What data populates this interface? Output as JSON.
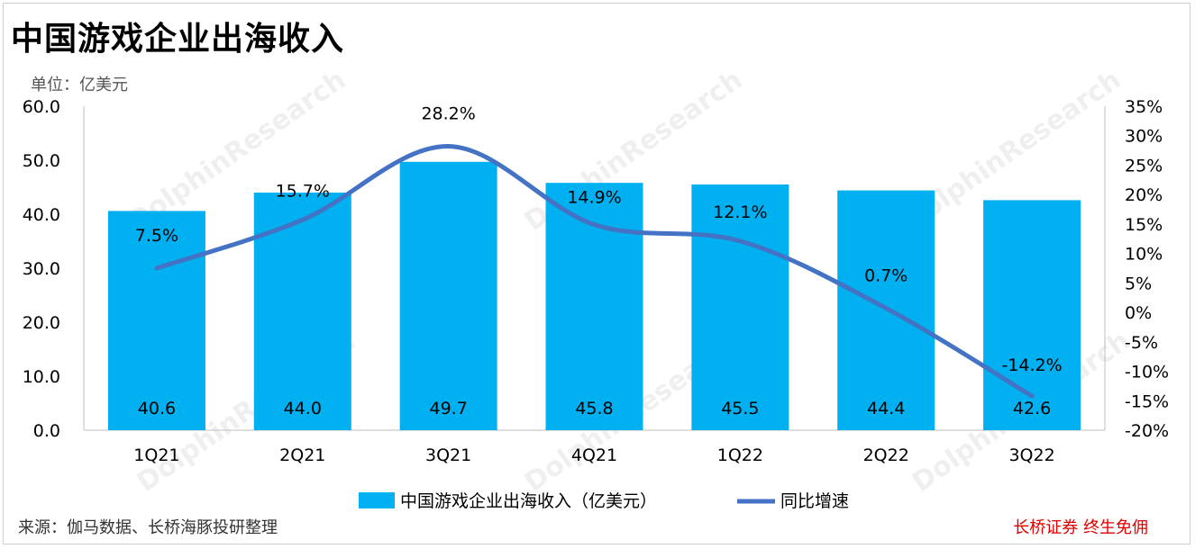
{
  "title": "中国游戏企业出海收入",
  "unit_label": "单位：亿美元",
  "source": "来源：伽马数据、长桥海豚投研整理",
  "brand": "长桥证券 终生免佣",
  "watermark": "DolphinResearch",
  "colors": {
    "bar": "#00B0F0",
    "line": "#4472C4"
  },
  "chart_data": {
    "type": "bar",
    "categories": [
      "1Q21",
      "2Q21",
      "3Q21",
      "4Q21",
      "1Q22",
      "2Q22",
      "3Q22"
    ],
    "series": [
      {
        "name": "中国游戏企业出海收入（亿美元）",
        "type": "bar",
        "axis": "left",
        "values": [
          40.6,
          44.0,
          49.7,
          45.8,
          45.5,
          44.4,
          42.6
        ],
        "labels": [
          "40.6",
          "44.0",
          "49.7",
          "45.8",
          "45.5",
          "44.4",
          "42.6"
        ]
      },
      {
        "name": "同比增速",
        "type": "line",
        "axis": "right",
        "values": [
          7.5,
          15.7,
          28.2,
          14.9,
          12.1,
          0.7,
          -14.2
        ],
        "labels": [
          "7.5%",
          "15.7%",
          "28.2%",
          "14.9%",
          "12.1%",
          "0.7%",
          "-14.2%"
        ]
      }
    ],
    "y_left": {
      "min": 0,
      "max": 60,
      "ticks": [
        "0.0",
        "10.0",
        "20.0",
        "30.0",
        "40.0",
        "50.0",
        "60.0"
      ]
    },
    "y_right": {
      "min": -20,
      "max": 35,
      "ticks": [
        "-20%",
        "-15%",
        "-10%",
        "-5%",
        "0%",
        "5%",
        "10%",
        "15%",
        "20%",
        "25%",
        "30%",
        "35%"
      ]
    },
    "legend_position": "bottom",
    "grid": false
  }
}
